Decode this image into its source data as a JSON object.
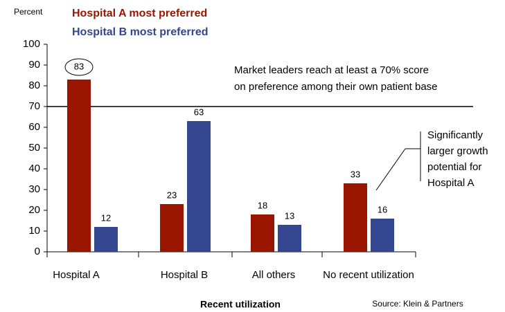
{
  "chart_data": {
    "type": "bar",
    "y_label": "Percent",
    "x_label": "Recent utilization",
    "source": "Source: Klein & Partners",
    "categories": [
      "Hospital A",
      "Hospital B",
      "All others",
      "No recent utilization"
    ],
    "series": [
      {
        "name": "Hospital A most preferred",
        "color": "#991500",
        "values": [
          83,
          23,
          18,
          33
        ]
      },
      {
        "name": "Hospital B most preferred",
        "color": "#33468f",
        "values": [
          12,
          63,
          13,
          16
        ]
      }
    ],
    "ylim": [
      0,
      100
    ],
    "yticks": [
      0,
      10,
      20,
      30,
      40,
      50,
      60,
      70,
      80,
      90,
      100
    ],
    "reference_line": 70,
    "annotation": [
      "Market leaders reach at least a 70% score",
      "on preference among their own patient base"
    ],
    "callout": [
      "Significantly",
      "larger growth",
      "potential for",
      "Hospital A"
    ]
  }
}
